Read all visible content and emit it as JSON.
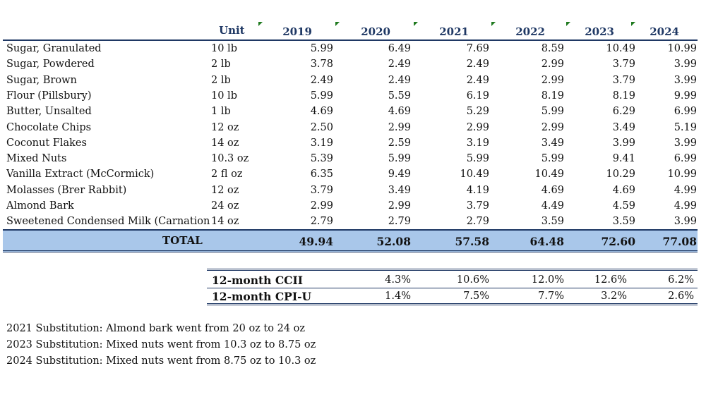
{
  "header": {
    "unit": "Unit",
    "years": [
      "2019",
      "2020",
      "2021",
      "2022",
      "2023",
      "2024"
    ]
  },
  "chart_data": {
    "type": "table",
    "columns": [
      "",
      "Unit",
      "2019",
      "2020",
      "2021",
      "2022",
      "2023",
      "2024"
    ],
    "rows": [
      {
        "item": "Sugar, Granulated",
        "unit": "10 lb",
        "values": [
          "5.99",
          "6.49",
          "7.69",
          "8.59",
          "10.49",
          "10.99"
        ]
      },
      {
        "item": "Sugar, Powdered",
        "unit": "2 lb",
        "values": [
          "3.78",
          "2.49",
          "2.49",
          "2.99",
          "3.79",
          "3.99"
        ]
      },
      {
        "item": "Sugar, Brown",
        "unit": "2 lb",
        "values": [
          "2.49",
          "2.49",
          "2.49",
          "2.99",
          "3.79",
          "3.99"
        ]
      },
      {
        "item": "Flour (Pillsbury)",
        "unit": "10 lb",
        "values": [
          "5.99",
          "5.59",
          "6.19",
          "8.19",
          "8.19",
          "9.99"
        ]
      },
      {
        "item": "Butter, Unsalted",
        "unit": "1 lb",
        "values": [
          "4.69",
          "4.69",
          "5.29",
          "5.99",
          "6.29",
          "6.99"
        ]
      },
      {
        "item": "Chocolate Chips",
        "unit": "12 oz",
        "values": [
          "2.50",
          "2.99",
          "2.99",
          "2.99",
          "3.49",
          "5.19"
        ]
      },
      {
        "item": "Coconut Flakes",
        "unit": "14 oz",
        "values": [
          "3.19",
          "2.59",
          "3.19",
          "3.49",
          "3.99",
          "3.99"
        ]
      },
      {
        "item": "Mixed Nuts",
        "unit": "10.3 oz",
        "values": [
          "5.39",
          "5.99",
          "5.99",
          "5.99",
          "9.41",
          "6.99"
        ]
      },
      {
        "item": "Vanilla Extract (McCormick)",
        "unit": "2 fl oz",
        "values": [
          "6.35",
          "9.49",
          "10.49",
          "10.49",
          "10.29",
          "10.99"
        ]
      },
      {
        "item": "Molasses (Brer Rabbit)",
        "unit": "12 oz",
        "values": [
          "3.79",
          "3.49",
          "4.19",
          "4.69",
          "4.69",
          "4.99"
        ]
      },
      {
        "item": "Almond Bark",
        "unit": "24 oz",
        "values": [
          "2.99",
          "2.99",
          "3.79",
          "4.49",
          "4.59",
          "4.99"
        ]
      },
      {
        "item": "Sweetened Condensed Milk (Carnation",
        "unit": "14 oz",
        "values": [
          "2.79",
          "2.79",
          "2.79",
          "3.59",
          "3.59",
          "3.99"
        ]
      }
    ],
    "total": {
      "label": "TOTAL",
      "values": [
        "49.94",
        "52.08",
        "57.58",
        "64.48",
        "72.60",
        "77.08"
      ]
    },
    "indices": [
      {
        "label": "12-month CCII",
        "values": [
          "4.3%",
          "10.6%",
          "12.0%",
          "12.6%",
          "6.2%"
        ]
      },
      {
        "label": "12-month CPI-U",
        "values": [
          "1.4%",
          "7.5%",
          "7.7%",
          "3.2%",
          "2.6%"
        ]
      }
    ]
  },
  "notes": [
    "2021 Substitution: Almond bark went from 20 oz to 24 oz",
    "2023 Substitution: Mixed nuts went from 10.3 oz to 8.75 oz",
    "2024 Substitution: Mixed nuts went from 8.75 oz to 10.3 oz"
  ],
  "colors": {
    "header_text": "#1f3864",
    "total_band": "#a9c7ea",
    "rule": "#1f3864",
    "comment_marker": "#1f7a1f"
  }
}
